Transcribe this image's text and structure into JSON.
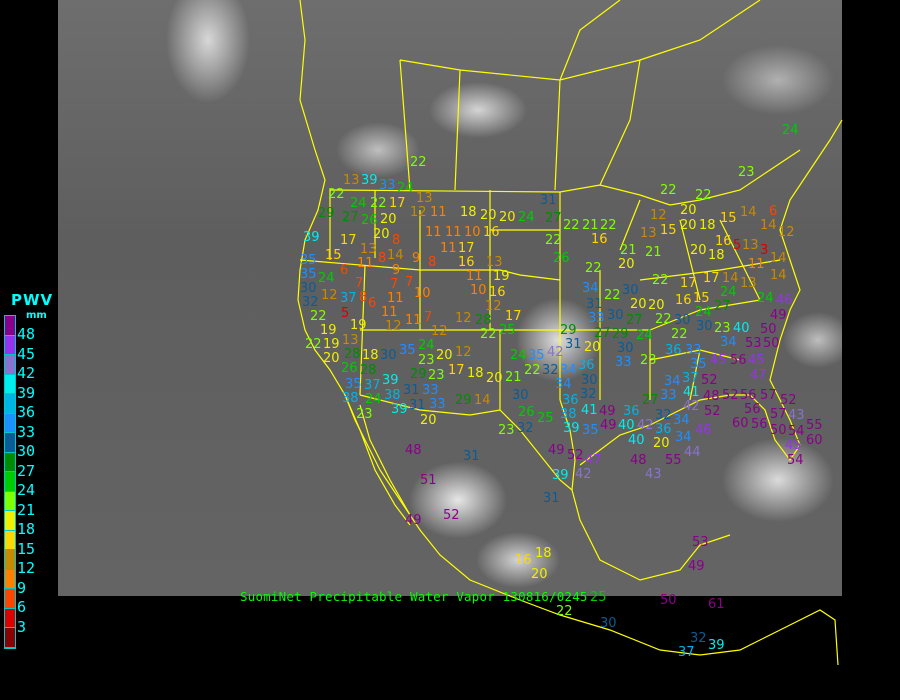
{
  "title": "SuomiNet Precipitable Water Vapor 130816/0245",
  "legend": {
    "title": "PWV",
    "unit": "mm",
    "labels": [
      "48",
      "45",
      "42",
      "39",
      "36",
      "33",
      "30",
      "27",
      "24",
      "21",
      "18",
      "15",
      "12",
      "9",
      "6",
      "3"
    ],
    "colors": [
      "#8b008b",
      "#9932f0",
      "#8a72d0",
      "#00eeee",
      "#00b4e6",
      "#1e8fff",
      "#0a5c96",
      "#008c00",
      "#00cc00",
      "#80ff00",
      "#f0f000",
      "#ffd700",
      "#c88a00",
      "#ff8000",
      "#ff4500",
      "#dd0000",
      "#8b0000"
    ]
  },
  "map": {
    "border_color": "#ffff00",
    "title_color": "#00ff00"
  },
  "stations": [
    {
      "value": "22"
    },
    {
      "value": "13"
    },
    {
      "value": "39"
    },
    {
      "value": "33"
    },
    {
      "value": "24"
    },
    {
      "value": "22"
    },
    {
      "value": "24"
    },
    {
      "value": "22"
    },
    {
      "value": "17"
    },
    {
      "value": "13"
    },
    {
      "value": "12"
    },
    {
      "value": "11"
    },
    {
      "value": "18"
    },
    {
      "value": "20"
    },
    {
      "value": "20"
    },
    {
      "value": "24"
    },
    {
      "value": "29"
    },
    {
      "value": "27"
    },
    {
      "value": "26"
    },
    {
      "value": "20"
    },
    {
      "value": "20"
    },
    {
      "value": "8"
    },
    {
      "value": "17"
    },
    {
      "value": "13"
    },
    {
      "value": "11"
    },
    {
      "value": "11"
    },
    {
      "value": "10"
    },
    {
      "value": "16"
    },
    {
      "value": "39"
    },
    {
      "value": "35"
    },
    {
      "value": "35"
    },
    {
      "value": "15"
    },
    {
      "value": "11"
    },
    {
      "value": "8"
    },
    {
      "value": "14"
    },
    {
      "value": "9"
    },
    {
      "value": "9"
    },
    {
      "value": "8"
    },
    {
      "value": "11"
    },
    {
      "value": "17"
    },
    {
      "value": "16"
    },
    {
      "value": "13"
    },
    {
      "value": "19"
    },
    {
      "value": "11"
    },
    {
      "value": "10"
    },
    {
      "value": "16"
    },
    {
      "value": "12"
    },
    {
      "value": "30"
    },
    {
      "value": "24"
    },
    {
      "value": "6"
    },
    {
      "value": "7"
    },
    {
      "value": "7"
    },
    {
      "value": "7"
    },
    {
      "value": "11"
    },
    {
      "value": "10"
    },
    {
      "value": "32"
    },
    {
      "value": "12"
    },
    {
      "value": "37"
    },
    {
      "value": "5"
    },
    {
      "value": "8"
    },
    {
      "value": "6"
    },
    {
      "value": "11"
    },
    {
      "value": "12"
    },
    {
      "value": "11"
    },
    {
      "value": "7"
    },
    {
      "value": "12"
    },
    {
      "value": "12"
    },
    {
      "value": "28"
    },
    {
      "value": "22"
    },
    {
      "value": "25"
    },
    {
      "value": "17"
    },
    {
      "value": "22"
    },
    {
      "value": "19"
    },
    {
      "value": "19"
    },
    {
      "value": "22"
    },
    {
      "value": "20"
    },
    {
      "value": "13"
    },
    {
      "value": "19"
    },
    {
      "value": "28"
    },
    {
      "value": "18"
    },
    {
      "value": "30"
    },
    {
      "value": "35"
    },
    {
      "value": "24"
    },
    {
      "value": "23"
    },
    {
      "value": "20"
    },
    {
      "value": "12"
    },
    {
      "value": "17"
    },
    {
      "value": "18"
    },
    {
      "value": "20"
    },
    {
      "value": "29"
    },
    {
      "value": "23"
    },
    {
      "value": "26"
    },
    {
      "value": "28"
    },
    {
      "value": "35"
    },
    {
      "value": "37"
    },
    {
      "value": "39"
    },
    {
      "value": "24"
    },
    {
      "value": "38"
    },
    {
      "value": "31"
    },
    {
      "value": "33"
    },
    {
      "value": "38"
    },
    {
      "value": "23"
    },
    {
      "value": "39"
    },
    {
      "value": "31"
    },
    {
      "value": "33"
    },
    {
      "value": "29"
    },
    {
      "value": "14"
    },
    {
      "value": "20"
    },
    {
      "value": "21"
    },
    {
      "value": "24"
    },
    {
      "value": "22"
    },
    {
      "value": "35"
    },
    {
      "value": "32"
    },
    {
      "value": "34"
    },
    {
      "value": "36"
    },
    {
      "value": "30"
    },
    {
      "value": "34"
    },
    {
      "value": "32"
    },
    {
      "value": "36"
    },
    {
      "value": "30"
    },
    {
      "value": "26"
    },
    {
      "value": "25"
    },
    {
      "value": "23"
    },
    {
      "value": "32"
    },
    {
      "value": "38"
    },
    {
      "value": "41"
    },
    {
      "value": "39"
    },
    {
      "value": "35"
    },
    {
      "value": "49"
    },
    {
      "value": "49"
    },
    {
      "value": "40"
    },
    {
      "value": "42"
    },
    {
      "value": "49"
    },
    {
      "value": "52"
    },
    {
      "value": "47"
    },
    {
      "value": "39"
    },
    {
      "value": "42"
    },
    {
      "value": "48"
    },
    {
      "value": "51"
    },
    {
      "value": "52"
    },
    {
      "value": "49"
    },
    {
      "value": "31"
    },
    {
      "value": "31"
    },
    {
      "value": "16"
    },
    {
      "value": "18"
    },
    {
      "value": "20"
    },
    {
      "value": "22"
    },
    {
      "value": "25"
    },
    {
      "value": "30"
    },
    {
      "value": "50"
    },
    {
      "value": "61"
    },
    {
      "value": "32"
    },
    {
      "value": "39"
    },
    {
      "value": "37"
    },
    {
      "value": "53"
    },
    {
      "value": "49"
    },
    {
      "value": "31"
    },
    {
      "value": "27"
    },
    {
      "value": "22"
    },
    {
      "value": "21"
    },
    {
      "value": "22"
    },
    {
      "value": "22"
    },
    {
      "value": "26"
    },
    {
      "value": "22"
    },
    {
      "value": "16"
    },
    {
      "value": "21"
    },
    {
      "value": "20"
    },
    {
      "value": "13"
    },
    {
      "value": "21"
    },
    {
      "value": "22"
    },
    {
      "value": "30"
    },
    {
      "value": "20"
    },
    {
      "value": "20"
    },
    {
      "value": "22"
    },
    {
      "value": "22"
    },
    {
      "value": "30"
    },
    {
      "value": "34"
    },
    {
      "value": "31"
    },
    {
      "value": "33"
    },
    {
      "value": "30"
    },
    {
      "value": "27"
    },
    {
      "value": "29"
    },
    {
      "value": "30"
    },
    {
      "value": "33"
    },
    {
      "value": "24"
    },
    {
      "value": "27"
    },
    {
      "value": "29"
    },
    {
      "value": "31"
    },
    {
      "value": "42"
    },
    {
      "value": "20"
    },
    {
      "value": "22"
    },
    {
      "value": "22"
    },
    {
      "value": "23"
    },
    {
      "value": "24"
    },
    {
      "value": "14"
    },
    {
      "value": "15"
    },
    {
      "value": "20"
    },
    {
      "value": "12"
    },
    {
      "value": "20"
    },
    {
      "value": "18"
    },
    {
      "value": "15"
    },
    {
      "value": "20"
    },
    {
      "value": "18"
    },
    {
      "value": "16"
    },
    {
      "value": "5"
    },
    {
      "value": "13"
    },
    {
      "value": "14"
    },
    {
      "value": "13"
    },
    {
      "value": "14"
    },
    {
      "value": "14"
    },
    {
      "value": "14"
    },
    {
      "value": "6"
    },
    {
      "value": "12"
    },
    {
      "value": "3"
    },
    {
      "value": "11"
    },
    {
      "value": "17"
    },
    {
      "value": "17"
    },
    {
      "value": "16"
    },
    {
      "value": "15"
    },
    {
      "value": "24"
    },
    {
      "value": "27"
    },
    {
      "value": "22"
    },
    {
      "value": "30"
    },
    {
      "value": "24"
    },
    {
      "value": "24"
    },
    {
      "value": "46"
    },
    {
      "value": "49"
    },
    {
      "value": "50"
    },
    {
      "value": "50"
    },
    {
      "value": "53"
    },
    {
      "value": "23"
    },
    {
      "value": "34"
    },
    {
      "value": "40"
    },
    {
      "value": "23"
    },
    {
      "value": "36"
    },
    {
      "value": "33"
    },
    {
      "value": "35"
    },
    {
      "value": "37"
    },
    {
      "value": "34"
    },
    {
      "value": "41"
    },
    {
      "value": "52"
    },
    {
      "value": "45"
    },
    {
      "value": "56"
    },
    {
      "value": "45"
    },
    {
      "value": "47"
    },
    {
      "value": "48"
    },
    {
      "value": "52"
    },
    {
      "value": "52"
    },
    {
      "value": "56"
    },
    {
      "value": "56"
    },
    {
      "value": "57"
    },
    {
      "value": "52"
    },
    {
      "value": "57"
    },
    {
      "value": "56"
    },
    {
      "value": "43"
    },
    {
      "value": "50"
    },
    {
      "value": "54"
    },
    {
      "value": "55"
    },
    {
      "value": "45"
    },
    {
      "value": "60"
    },
    {
      "value": "60"
    },
    {
      "value": "54"
    },
    {
      "value": "33"
    },
    {
      "value": "27"
    },
    {
      "value": "32"
    },
    {
      "value": "36"
    },
    {
      "value": "34"
    },
    {
      "value": "36"
    },
    {
      "value": "40"
    },
    {
      "value": "42"
    },
    {
      "value": "34"
    },
    {
      "value": "46"
    },
    {
      "value": "55"
    },
    {
      "value": "20"
    },
    {
      "value": "48"
    },
    {
      "value": "43"
    },
    {
      "value": "44"
    }
  ]
}
